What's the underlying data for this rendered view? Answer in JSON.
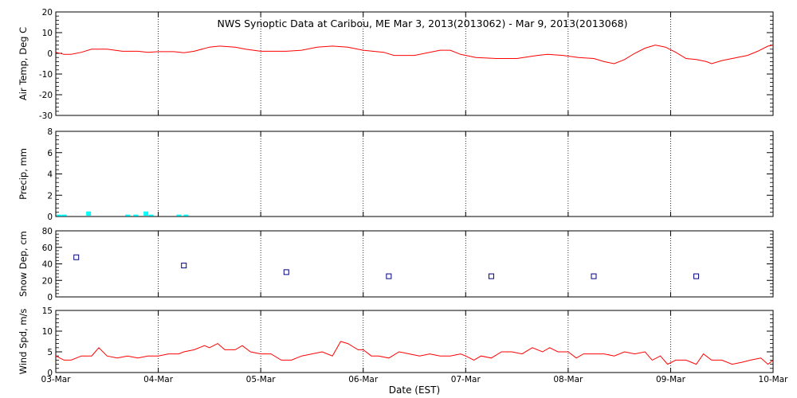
{
  "chart_data": {
    "type": "line",
    "title": "NWS Synoptic Data at Caribou, ME   Mar  3, 2013(2013062) - Mar  9, 2013(2013068)",
    "xlabel": "Date (EST)",
    "x_ticks": [
      "03-Mar",
      "04-Mar",
      "05-Mar",
      "06-Mar",
      "07-Mar",
      "08-Mar",
      "09-Mar",
      "10-Mar"
    ],
    "xlim_days": [
      0,
      7
    ],
    "panels": [
      {
        "id": "airtemp",
        "type": "line",
        "ylabel": "Air Temp, Deg C",
        "ylim": [
          -30,
          20
        ],
        "yticks": [
          -30,
          -20,
          -10,
          0,
          10,
          20
        ],
        "color": "#ff0000",
        "points": [
          [
            0.0,
            0.5
          ],
          [
            0.08,
            -0.5
          ],
          [
            0.15,
            -0.5
          ],
          [
            0.25,
            0.5
          ],
          [
            0.35,
            2
          ],
          [
            0.5,
            2
          ],
          [
            0.65,
            1
          ],
          [
            0.8,
            1
          ],
          [
            0.9,
            0.5
          ],
          [
            1.0,
            0.8
          ],
          [
            1.15,
            0.8
          ],
          [
            1.25,
            0.3
          ],
          [
            1.35,
            1
          ],
          [
            1.5,
            3
          ],
          [
            1.6,
            3.5
          ],
          [
            1.75,
            3
          ],
          [
            1.85,
            2
          ],
          [
            2.0,
            1
          ],
          [
            2.1,
            1
          ],
          [
            2.25,
            1
          ],
          [
            2.4,
            1.5
          ],
          [
            2.55,
            3
          ],
          [
            2.7,
            3.5
          ],
          [
            2.85,
            3
          ],
          [
            3.0,
            1.5
          ],
          [
            3.2,
            0.5
          ],
          [
            3.3,
            -1
          ],
          [
            3.5,
            -1
          ],
          [
            3.6,
            0
          ],
          [
            3.75,
            1.5
          ],
          [
            3.85,
            1.5
          ],
          [
            3.95,
            -0.5
          ],
          [
            4.1,
            -2
          ],
          [
            4.3,
            -2.5
          ],
          [
            4.5,
            -2.5
          ],
          [
            4.7,
            -1
          ],
          [
            4.8,
            -0.5
          ],
          [
            4.95,
            -1
          ],
          [
            5.1,
            -2
          ],
          [
            5.25,
            -2.5
          ],
          [
            5.35,
            -4
          ],
          [
            5.45,
            -5
          ],
          [
            5.55,
            -3
          ],
          [
            5.65,
            0
          ],
          [
            5.75,
            2.5
          ],
          [
            5.85,
            4
          ],
          [
            5.95,
            3
          ],
          [
            6.05,
            0.5
          ],
          [
            6.15,
            -2.5
          ],
          [
            6.25,
            -3
          ],
          [
            6.35,
            -4
          ],
          [
            6.4,
            -5
          ],
          [
            6.5,
            -3.5
          ],
          [
            6.6,
            -2.5
          ],
          [
            6.75,
            -1
          ],
          [
            6.85,
            1
          ],
          [
            6.95,
            3.5
          ],
          [
            7.0,
            4
          ]
        ]
      },
      {
        "id": "precip",
        "type": "bar",
        "ylabel": "Precip, mm",
        "ylim": [
          0,
          8
        ],
        "yticks": [
          0,
          2,
          4,
          6,
          8
        ],
        "color": "#00ffff",
        "bars": [
          [
            0.03,
            0.1
          ],
          [
            0.08,
            0.1
          ],
          [
            0.32,
            0.4
          ],
          [
            0.7,
            0.1
          ],
          [
            0.78,
            0.1
          ],
          [
            0.88,
            0.4
          ],
          [
            0.93,
            0.1
          ],
          [
            1.2,
            0.1
          ],
          [
            1.27,
            0.1
          ]
        ]
      },
      {
        "id": "snowdep",
        "type": "scatter",
        "ylabel": "Snow Dep, cm",
        "ylim": [
          0,
          80
        ],
        "yticks": [
          0,
          20,
          40,
          60,
          80
        ],
        "color": "#000080",
        "points": [
          [
            0.2,
            48
          ],
          [
            1.25,
            38
          ],
          [
            2.25,
            30
          ],
          [
            3.25,
            25
          ],
          [
            4.25,
            25
          ],
          [
            5.25,
            25
          ],
          [
            6.25,
            25
          ]
        ]
      },
      {
        "id": "windspd",
        "type": "line",
        "ylabel": "Wind Spd, m/s",
        "ylim": [
          0,
          15
        ],
        "yticks": [
          0,
          5,
          10,
          15
        ],
        "color": "#ff0000",
        "points": [
          [
            0.0,
            4
          ],
          [
            0.08,
            3
          ],
          [
            0.15,
            3
          ],
          [
            0.25,
            4
          ],
          [
            0.35,
            4
          ],
          [
            0.42,
            6
          ],
          [
            0.5,
            4
          ],
          [
            0.6,
            3.5
          ],
          [
            0.7,
            4
          ],
          [
            0.8,
            3.5
          ],
          [
            0.9,
            4
          ],
          [
            1.0,
            4
          ],
          [
            1.1,
            4.5
          ],
          [
            1.2,
            4.5
          ],
          [
            1.25,
            5
          ],
          [
            1.35,
            5.5
          ],
          [
            1.45,
            6.5
          ],
          [
            1.5,
            6
          ],
          [
            1.58,
            7
          ],
          [
            1.65,
            5.5
          ],
          [
            1.75,
            5.5
          ],
          [
            1.82,
            6.5
          ],
          [
            1.9,
            5
          ],
          [
            2.0,
            4.5
          ],
          [
            2.1,
            4.5
          ],
          [
            2.2,
            3
          ],
          [
            2.3,
            3
          ],
          [
            2.4,
            4
          ],
          [
            2.5,
            4.5
          ],
          [
            2.6,
            5
          ],
          [
            2.7,
            4
          ],
          [
            2.78,
            7.5
          ],
          [
            2.85,
            7
          ],
          [
            2.95,
            5.5
          ],
          [
            3.0,
            5.5
          ],
          [
            3.08,
            4
          ],
          [
            3.15,
            4
          ],
          [
            3.25,
            3.5
          ],
          [
            3.35,
            5
          ],
          [
            3.45,
            4.5
          ],
          [
            3.55,
            4
          ],
          [
            3.65,
            4.5
          ],
          [
            3.75,
            4
          ],
          [
            3.85,
            4
          ],
          [
            3.95,
            4.5
          ],
          [
            4.0,
            4
          ],
          [
            4.08,
            3
          ],
          [
            4.15,
            4
          ],
          [
            4.25,
            3.5
          ],
          [
            4.35,
            5
          ],
          [
            4.45,
            5
          ],
          [
            4.55,
            4.5
          ],
          [
            4.65,
            6
          ],
          [
            4.75,
            5
          ],
          [
            4.82,
            6
          ],
          [
            4.9,
            5
          ],
          [
            5.0,
            5
          ],
          [
            5.08,
            3.5
          ],
          [
            5.15,
            4.5
          ],
          [
            5.25,
            4.5
          ],
          [
            5.35,
            4.5
          ],
          [
            5.45,
            4
          ],
          [
            5.55,
            5
          ],
          [
            5.65,
            4.5
          ],
          [
            5.75,
            5
          ],
          [
            5.82,
            3
          ],
          [
            5.9,
            4
          ],
          [
            5.97,
            2
          ],
          [
            6.05,
            3
          ],
          [
            6.15,
            3
          ],
          [
            6.25,
            2
          ],
          [
            6.32,
            4.5
          ],
          [
            6.4,
            3
          ],
          [
            6.5,
            3
          ],
          [
            6.6,
            2
          ],
          [
            6.7,
            2.5
          ],
          [
            6.78,
            3
          ],
          [
            6.88,
            3.5
          ],
          [
            6.95,
            2
          ],
          [
            7.0,
            3
          ]
        ]
      }
    ]
  }
}
